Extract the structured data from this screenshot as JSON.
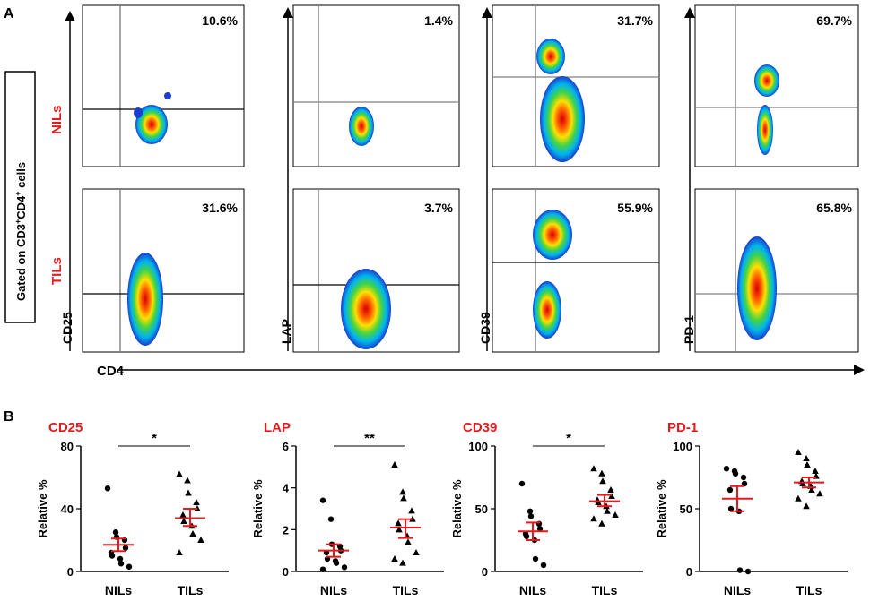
{
  "panel_labels": {
    "a": "A",
    "b": "B"
  },
  "side_box": {
    "prefix": "Gated on CD3",
    "sup1": "+",
    "mid": "CD4",
    "sup2": "+",
    "suffix": " cells"
  },
  "row_labels": {
    "top": "NILs",
    "bottom": "TILs"
  },
  "x_axis_label": "CD4",
  "colors": {
    "accent_red": "#e41a1c",
    "gate_line": "#000000",
    "vline": "#808080",
    "mean_bar": "#e41a1c"
  },
  "flow": {
    "markers": [
      "CD25",
      "LAP",
      "CD39",
      "PD-1"
    ],
    "nils_percent": [
      "10.6%",
      "1.4%",
      "31.7%",
      "69.7%"
    ],
    "tils_percent": [
      "31.6%",
      "3.7%",
      "55.9%",
      "65.8%"
    ]
  },
  "chart_data": [
    {
      "type": "scatter",
      "title": "CD25",
      "ylabel": "Relative %",
      "ylim": [
        0,
        80
      ],
      "yticks": [
        "0",
        "40",
        "80"
      ],
      "categories": [
        "NILs",
        "TILs"
      ],
      "significance": "*",
      "series": [
        {
          "name": "NILs",
          "marker": "circle",
          "values": [
            53,
            25,
            22,
            20,
            15,
            12,
            10,
            8,
            5,
            3
          ],
          "mean": 17,
          "sem_low": 13,
          "sem_high": 21
        },
        {
          "name": "TILs",
          "marker": "triangle",
          "values": [
            62,
            58,
            50,
            44,
            40,
            36,
            32,
            29,
            24,
            20,
            12
          ],
          "mean": 34,
          "sem_low": 29,
          "sem_high": 40
        }
      ]
    },
    {
      "type": "scatter",
      "title": "LAP",
      "ylabel": "Relative %",
      "ylim": [
        0,
        6
      ],
      "yticks": [
        "0",
        "2",
        "4",
        "6"
      ],
      "categories": [
        "NILs",
        "TILs"
      ],
      "significance": "**",
      "series": [
        {
          "name": "NILs",
          "marker": "circle",
          "values": [
            3.4,
            2.5,
            1.3,
            1.2,
            1.0,
            0.9,
            0.6,
            0.5,
            0.4,
            0.2,
            0.1
          ],
          "mean": 1.0,
          "sem_low": 0.7,
          "sem_high": 1.3
        },
        {
          "name": "TILs",
          "marker": "triangle",
          "values": [
            5.1,
            3.8,
            3.5,
            2.9,
            2.5,
            2.3,
            2.0,
            1.7,
            1.4,
            0.9,
            0.6,
            0.4
          ],
          "mean": 2.1,
          "sem_low": 1.6,
          "sem_high": 2.5
        }
      ]
    },
    {
      "type": "scatter",
      "title": "CD39",
      "ylabel": "Relative %",
      "ylim": [
        0,
        100
      ],
      "yticks": [
        "0",
        "50",
        "100"
      ],
      "categories": [
        "NILs",
        "TILs"
      ],
      "significance": "*",
      "series": [
        {
          "name": "NILs",
          "marker": "circle",
          "values": [
            70,
            48,
            44,
            38,
            34,
            30,
            28,
            25,
            10,
            5
          ],
          "mean": 32,
          "sem_low": 25,
          "sem_high": 39
        },
        {
          "name": "TILs",
          "marker": "triangle",
          "values": [
            82,
            78,
            72,
            65,
            60,
            57,
            55,
            52,
            48,
            45,
            42,
            38
          ],
          "mean": 56,
          "sem_low": 52,
          "sem_high": 61
        }
      ]
    },
    {
      "type": "scatter",
      "title": "PD-1",
      "ylabel": "Relative %",
      "ylim": [
        0,
        100
      ],
      "yticks": [
        "0",
        "50",
        "100"
      ],
      "categories": [
        "NILs",
        "TILs"
      ],
      "significance": "",
      "series": [
        {
          "name": "NILs",
          "marker": "circle",
          "values": [
            82,
            80,
            78,
            75,
            70,
            65,
            50,
            48,
            1,
            0
          ],
          "mean": 58,
          "sem_low": 48,
          "sem_high": 68
        },
        {
          "name": "TILs",
          "marker": "triangle",
          "values": [
            95,
            90,
            85,
            80,
            76,
            72,
            70,
            68,
            65,
            62,
            58,
            52
          ],
          "mean": 71,
          "sem_low": 67,
          "sem_high": 75
        }
      ]
    }
  ]
}
